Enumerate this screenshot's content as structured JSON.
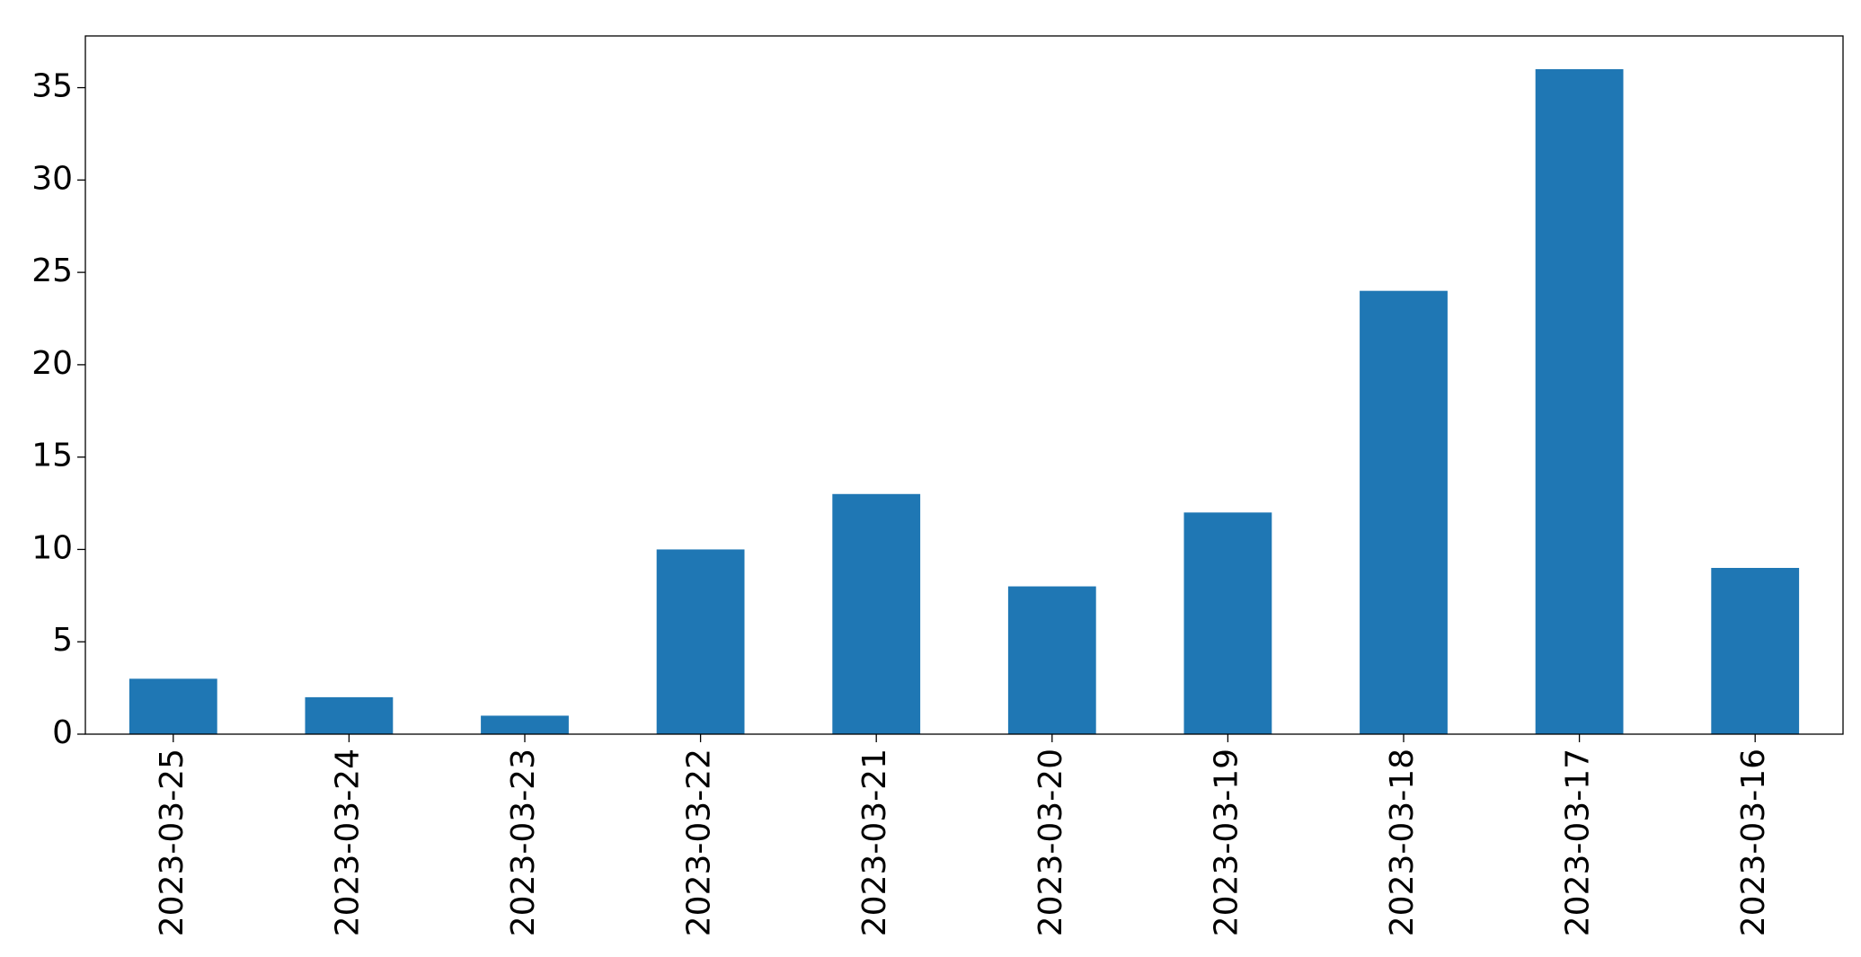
{
  "chart_data": {
    "type": "bar",
    "categories": [
      "2023-03-25",
      "2023-03-24",
      "2023-03-23",
      "2023-03-22",
      "2023-03-21",
      "2023-03-20",
      "2023-03-19",
      "2023-03-18",
      "2023-03-17",
      "2023-03-16"
    ],
    "values": [
      3,
      2,
      1,
      10,
      13,
      8,
      12,
      24,
      36,
      9
    ],
    "color": "#1f77b4",
    "ylim": [
      0,
      37.8
    ],
    "yticks": [
      0,
      5,
      10,
      15,
      20,
      25,
      30,
      35
    ],
    "grid": false
  }
}
